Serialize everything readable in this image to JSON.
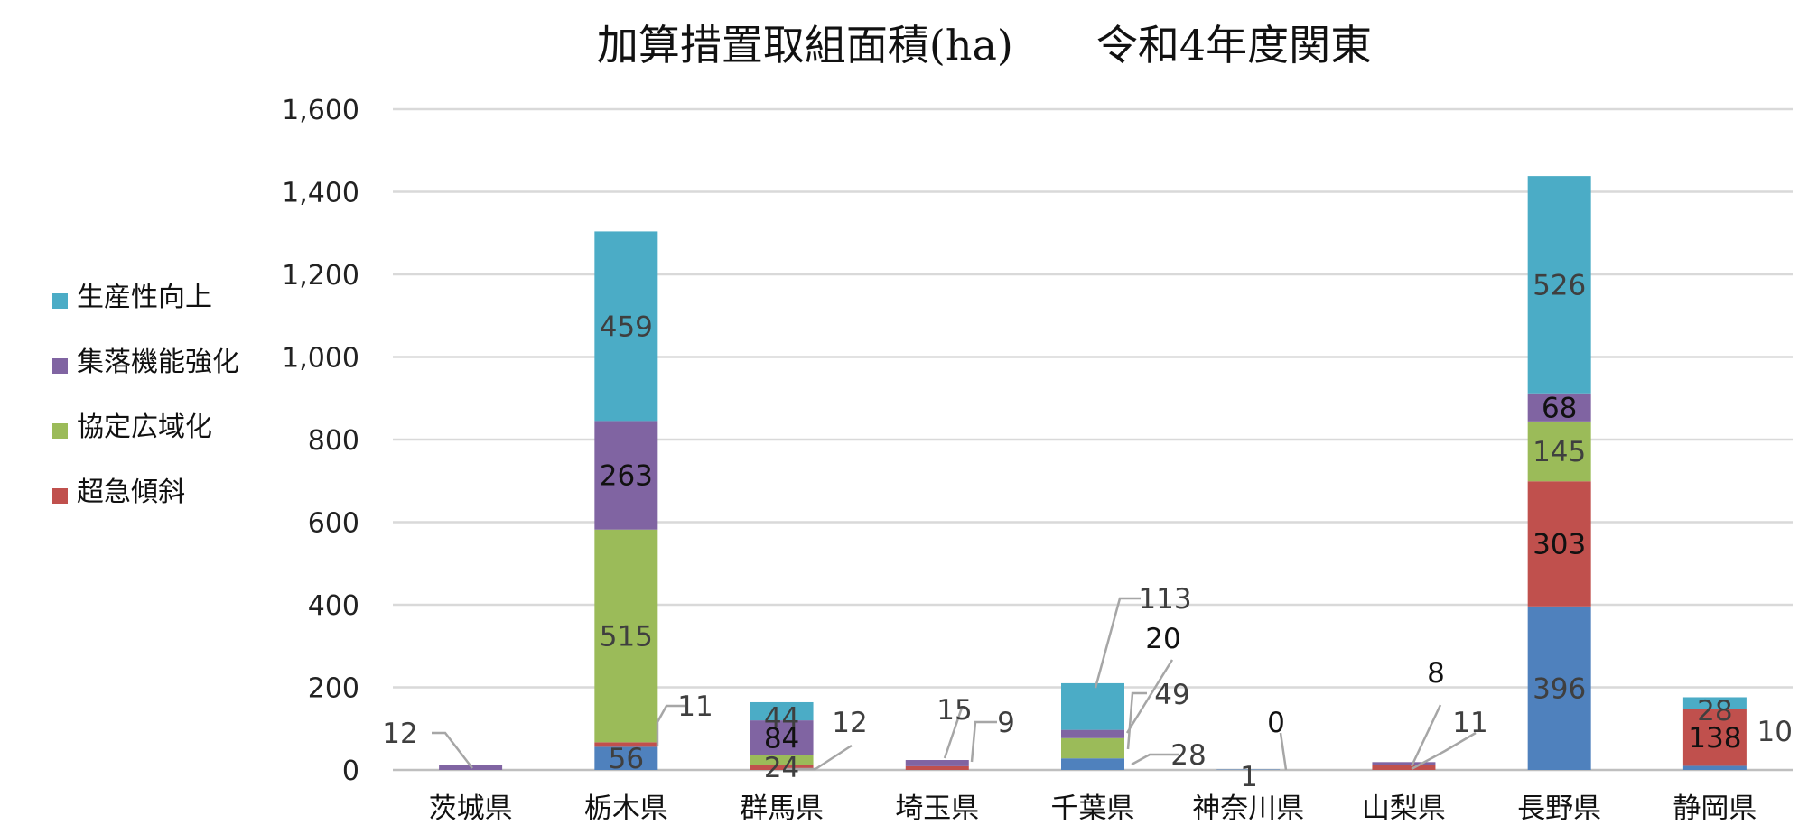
{
  "chart_data": {
    "type": "bar",
    "stacked": true,
    "title": "加算措置取組面積(ha)　　令和4年度関東",
    "xlabel": "",
    "ylabel": "",
    "ylim": [
      0,
      1600
    ],
    "yticks": [
      "0",
      "200",
      "400",
      "600",
      "800",
      "1,000",
      "1,200",
      "1,400",
      "1,600"
    ],
    "grid": true,
    "legend_position": "left",
    "categories": [
      "茨城県",
      "栃木県",
      "群馬県",
      "埼玉県",
      "千葉県",
      "神奈川県",
      "山梨県",
      "長野県",
      "静岡県"
    ],
    "series": [
      {
        "name": "unlabeled-base",
        "color": "#4f81bd",
        "values": [
          0,
          56,
          0,
          0,
          28,
          1,
          0,
          396,
          10
        ]
      },
      {
        "name": "超急傾斜",
        "color": "#c0504d",
        "values": [
          0,
          11,
          12,
          9,
          0,
          0,
          11,
          303,
          138
        ]
      },
      {
        "name": "協定広域化",
        "color": "#9bbb59",
        "values": [
          0,
          515,
          24,
          0,
          49,
          0,
          0,
          145,
          0
        ]
      },
      {
        "name": "集落機能強化",
        "color": "#8064a2",
        "values": [
          12,
          263,
          84,
          15,
          20,
          0,
          8,
          68,
          0
        ]
      },
      {
        "name": "生産性向上",
        "color": "#4bacc6",
        "values": [
          0,
          459,
          44,
          0,
          113,
          0,
          0,
          526,
          28
        ]
      }
    ],
    "data_labels": [
      {
        "category": "茨城県",
        "series": "集落機能強化",
        "text": "12"
      },
      {
        "category": "栃木県",
        "series": "unlabeled-base",
        "text": "56"
      },
      {
        "category": "栃木県",
        "series": "超急傾斜",
        "text": "11"
      },
      {
        "category": "栃木県",
        "series": "協定広域化",
        "text": "515"
      },
      {
        "category": "栃木県",
        "series": "集落機能強化",
        "text": "263"
      },
      {
        "category": "栃木県",
        "series": "生産性向上",
        "text": "459"
      },
      {
        "category": "群馬県",
        "series": "超急傾斜",
        "text": "12"
      },
      {
        "category": "群馬県",
        "series": "協定広域化",
        "text": "24"
      },
      {
        "category": "群馬県",
        "series": "集落機能強化",
        "text": "84"
      },
      {
        "category": "群馬県",
        "series": "生産性向上",
        "text": "44"
      },
      {
        "category": "埼玉県",
        "series": "超急傾斜",
        "text": "9"
      },
      {
        "category": "埼玉県",
        "series": "集落機能強化",
        "text": "15"
      },
      {
        "category": "千葉県",
        "series": "unlabeled-base",
        "text": "28"
      },
      {
        "category": "千葉県",
        "series": "協定広域化",
        "text": "49"
      },
      {
        "category": "千葉県",
        "series": "集落機能強化",
        "text": "20"
      },
      {
        "category": "千葉県",
        "series": "生産性向上",
        "text": "113"
      },
      {
        "category": "神奈川県",
        "series": "unlabeled-base",
        "text": "1"
      },
      {
        "category": "神奈川県",
        "series": "超急傾斜",
        "text": "0"
      },
      {
        "category": "山梨県",
        "series": "超急傾斜",
        "text": "11"
      },
      {
        "category": "山梨県",
        "series": "集落機能強化",
        "text": "8"
      },
      {
        "category": "長野県",
        "series": "unlabeled-base",
        "text": "396"
      },
      {
        "category": "長野県",
        "series": "超急傾斜",
        "text": "303"
      },
      {
        "category": "長野県",
        "series": "協定広域化",
        "text": "145"
      },
      {
        "category": "長野県",
        "series": "集落機能強化",
        "text": "68"
      },
      {
        "category": "長野県",
        "series": "生産性向上",
        "text": "526"
      },
      {
        "category": "静岡県",
        "series": "unlabeled-base",
        "text": "10"
      },
      {
        "category": "静岡県",
        "series": "超急傾斜",
        "text": "138"
      },
      {
        "category": "静岡県",
        "series": "生産性向上",
        "text": "28"
      }
    ],
    "legend": [
      {
        "label": "生産性向上",
        "color": "#4bacc6"
      },
      {
        "label": "集落機能強化",
        "color": "#8064a2"
      },
      {
        "label": "協定広域化",
        "color": "#9bbb59"
      },
      {
        "label": "超急傾斜",
        "color": "#c0504d"
      }
    ]
  }
}
